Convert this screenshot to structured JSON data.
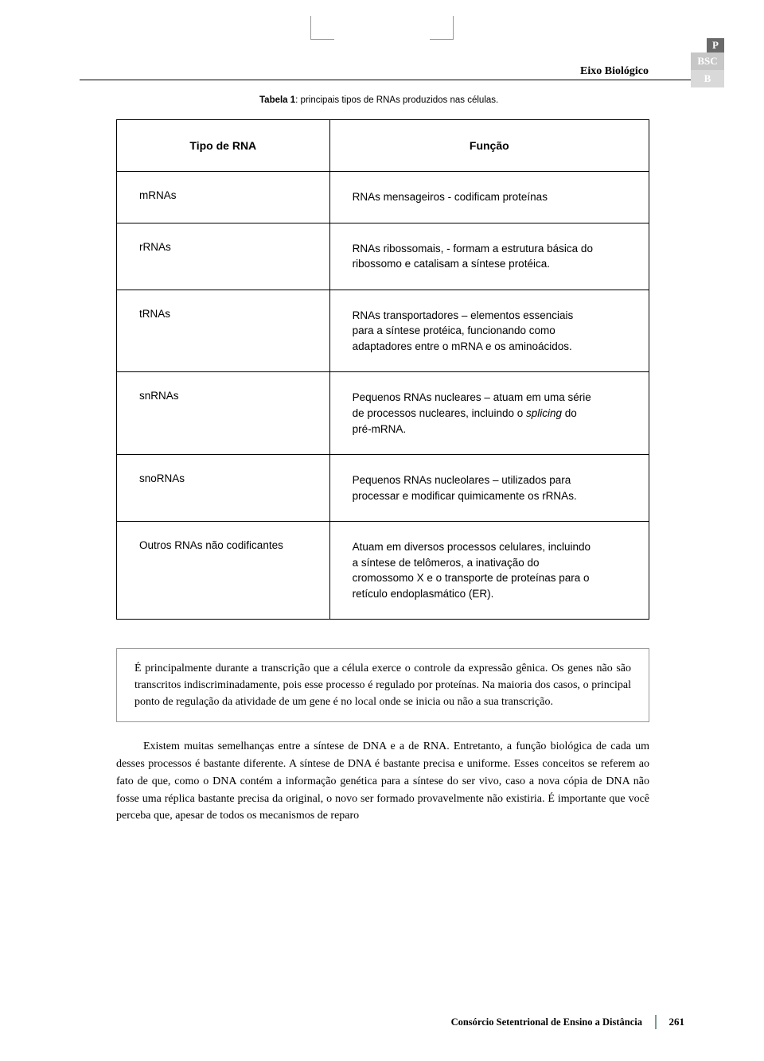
{
  "header": {
    "title": "Eixo Biológico",
    "tabs": {
      "p": "P",
      "bsc": "BSC",
      "b": "B"
    }
  },
  "caption": {
    "label": "Tabela 1",
    "text": ": principais tipos de RNAs produzidos nas células."
  },
  "table": {
    "columns": [
      "Tipo de RNA",
      "Função"
    ],
    "rows": [
      {
        "type": "mRNAs",
        "func": "RNAs mensageiros  - codificam proteínas"
      },
      {
        "type": "rRNAs",
        "func": "RNAs ribossomais, - formam a estrutura básica do ribossomo e catalisam a síntese protéica."
      },
      {
        "type": "tRNAs",
        "func": "RNAs transportadores – elementos essenciais para a síntese protéica, funcionando como adaptadores entre o mRNA e os aminoácidos."
      },
      {
        "type": "snRNAs",
        "func_pre": "Pequenos RNAs nucleares – atuam em uma série de processos nucleares, incluindo o ",
        "func_italic": "splicing",
        "func_post": " do pré-mRNA."
      },
      {
        "type": "snoRNAs",
        "func": "Pequenos RNAs nucleolares – utilizados para processar e modificar quimicamente os rRNAs."
      },
      {
        "type": "Outros RNAs não codificantes",
        "func": "Atuam em diversos processos celulares, incluindo a síntese de telômeros, a inativação do cromossomo X e o transporte de proteínas para o retículo endoplasmático (ER)."
      }
    ]
  },
  "box": "É principalmente durante a transcrição que a célula exerce o controle da expressão gênica. Os genes não são transcritos indiscriminadamente, pois esse processo é regulado por proteínas. Na maioria dos casos, o principal ponto de regulação da atividade de um gene é no local onde se inicia ou não a sua transcrição.",
  "paragraph": "Existem muitas semelhanças entre a síntese de DNA e a de RNA. Entretanto, a função biológica de cada um desses processos é bastante diferente. A síntese de DNA é bastante precisa e uniforme. Esses conceitos se referem ao fato de que, como o DNA contém a informação genética para a síntese do ser vivo, caso a nova cópia de DNA não fosse uma réplica bastante precisa da original, o novo ser formado provavelmente não existiria. É importante que você perceba que, apesar de todos os mecanismos de reparo",
  "footer": {
    "text": "Consórcio Setentrional de Ensino a Distância",
    "page": "261"
  },
  "colors": {
    "text": "#000000",
    "border": "#000000",
    "box_border": "#999999",
    "tab_dark": "#6a6a6a",
    "tab_mid": "#c7c7c7",
    "tab_light": "#d9d9d9",
    "footer_accent": "#7c9b8e"
  }
}
